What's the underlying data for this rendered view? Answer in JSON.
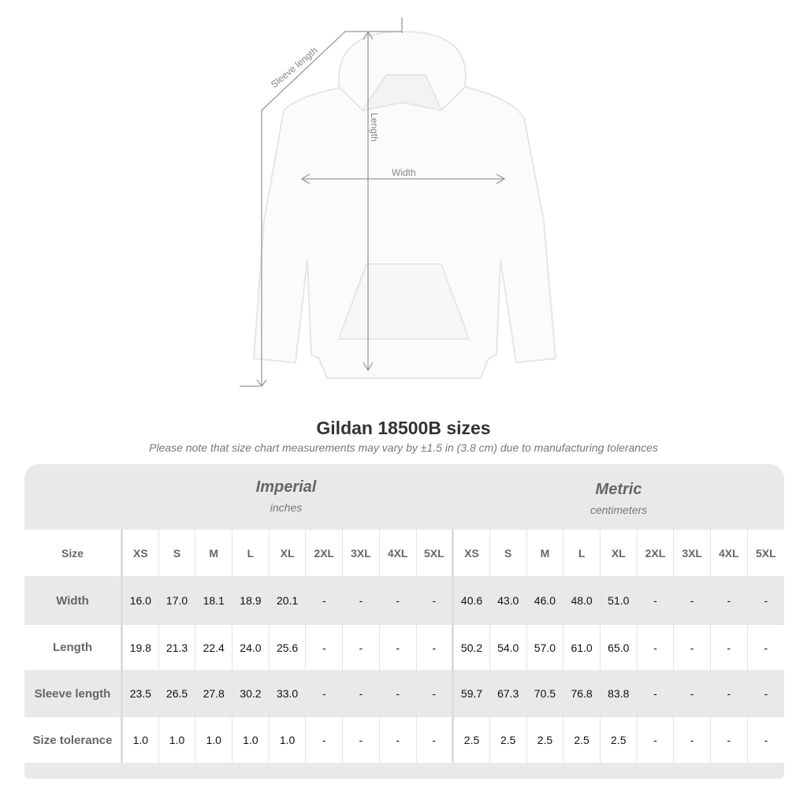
{
  "diagram": {
    "sleeve_label": "Sleeve length",
    "length_label": "Length",
    "width_label": "Width"
  },
  "title": "Gildan 18500B sizes",
  "note": "Please note that size chart measurements may vary by ±1.5 in (3.8 cm) due to manufacturing tolerances",
  "imperial": {
    "name": "Imperial",
    "unit": "inches"
  },
  "metric": {
    "name": "Metric",
    "unit": "centimeters"
  },
  "size_label": "Size",
  "sizes": [
    "XS",
    "S",
    "M",
    "L",
    "XL",
    "2XL",
    "3XL",
    "4XL",
    "5XL"
  ],
  "rows": [
    {
      "label": "Width",
      "imperial": [
        "16.0",
        "17.0",
        "18.1",
        "18.9",
        "20.1",
        "-",
        "-",
        "-",
        "-"
      ],
      "metric": [
        "40.6",
        "43.0",
        "46.0",
        "48.0",
        "51.0",
        "-",
        "-",
        "-",
        "-"
      ]
    },
    {
      "label": "Length",
      "imperial": [
        "19.8",
        "21.3",
        "22.4",
        "24.0",
        "25.6",
        "-",
        "-",
        "-",
        "-"
      ],
      "metric": [
        "50.2",
        "54.0",
        "57.0",
        "61.0",
        "65.0",
        "-",
        "-",
        "-",
        "-"
      ]
    },
    {
      "label": "Sleeve length",
      "imperial": [
        "23.5",
        "26.5",
        "27.8",
        "30.2",
        "33.0",
        "-",
        "-",
        "-",
        "-"
      ],
      "metric": [
        "59.7",
        "67.3",
        "70.5",
        "76.8",
        "83.8",
        "-",
        "-",
        "-",
        "-"
      ]
    },
    {
      "label": "Size tolerance",
      "imperial": [
        "1.0",
        "1.0",
        "1.0",
        "1.0",
        "1.0",
        "-",
        "-",
        "-",
        "-"
      ],
      "metric": [
        "2.5",
        "2.5",
        "2.5",
        "2.5",
        "2.5",
        "-",
        "-",
        "-",
        "-"
      ]
    }
  ]
}
